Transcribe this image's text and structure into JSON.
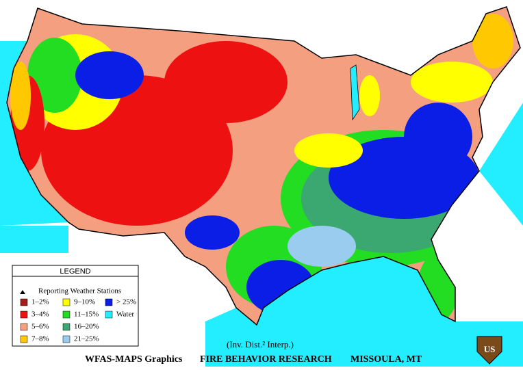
{
  "legend": {
    "title": "LEGEND",
    "stations": "Reporting Weather Stations",
    "items": [
      {
        "label": "1–2%",
        "color": "#a51a1a"
      },
      {
        "label": "3–4%",
        "color": "#ee1111"
      },
      {
        "label": "5–6%",
        "color": "#f4a080"
      },
      {
        "label": "7–8%",
        "color": "#ffc800"
      },
      {
        "label": "9–10%",
        "color": "#ffff00"
      },
      {
        "label": "11–15%",
        "color": "#22dd22"
      },
      {
        "label": "16–20%",
        "color": "#3aa870"
      },
      {
        "label": "21–25%",
        "color": "#99ccee"
      },
      {
        "label": "> 25%",
        "color": "#0a1ee6"
      },
      {
        "label": "Water",
        "color": "#22eeff"
      }
    ]
  },
  "note": "(Inv. Dist.² Interp.)",
  "footer": {
    "left": "WFAS-MAPS Graphics",
    "center": "FIRE BEHAVIOR RESEARCH",
    "right": "MISSOULA, MT"
  },
  "logo": "US"
}
